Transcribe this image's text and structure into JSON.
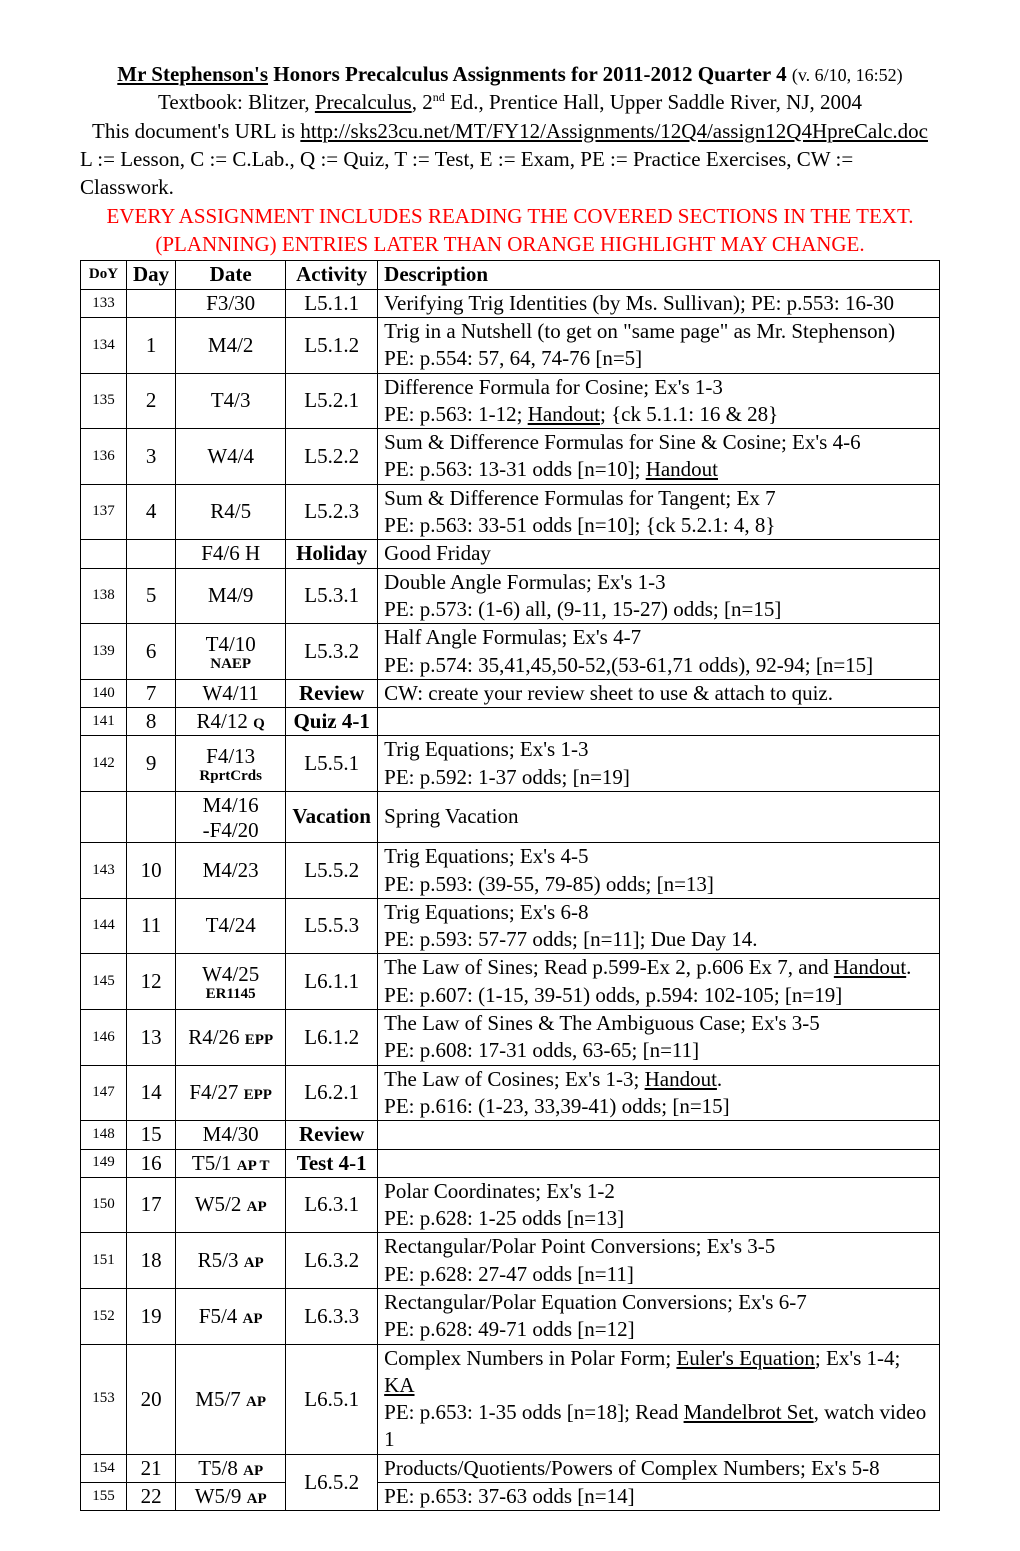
{
  "header": {
    "title_author": "Mr Stephenson's",
    "title_rest": " Honors Precalculus Assignments for 2011-2012 Quarter 4 ",
    "title_ver": "(v. 6/10, 16:52)",
    "textbook_pre": "Textbook: Blitzer, ",
    "textbook_title": "Precalculus",
    "textbook_post1": ", 2",
    "textbook_post2": " Ed., Prentice Hall, Upper Saddle River, NJ, 2004",
    "url_pre": "This document's URL is ",
    "url": "http://sks23cu.net/MT/FY12/Assignments/12Q4/assign12Q4HpreCalc.doc",
    "legend": "L := Lesson, C := C.Lab., Q := Quiz, T := Test, E := Exam, PE := Practice Exercises, CW := Classwork.",
    "red1": "EVERY ASSIGNMENT INCLUDES READING THE COVERED SECTIONS IN THE TEXT.",
    "red2": "(PLANNING) ENTRIES LATER THAN ORANGE HIGHLIGHT MAY CHANGE."
  },
  "columns": {
    "doy": "DoY",
    "day": "Day",
    "date": "Date",
    "activity": "Activity",
    "description": "Description"
  },
  "rows": [
    {
      "doy": "133",
      "day": "",
      "date": "F3/30",
      "act": "L5.1.1",
      "desc": "Verifying Trig Identities (by Ms. Sullivan); PE: p.553: 16-30"
    },
    {
      "doy": "134",
      "day": "1",
      "date": "M4/2",
      "act": "L5.1.2",
      "desc": "Trig in a Nutshell (to get on \"same page\" as Mr. Stephenson)<br>PE: p.554: 57, 64, 74-76 [n=5]"
    },
    {
      "doy": "135",
      "day": "2",
      "date": "T4/3",
      "act": "L5.2.1",
      "desc": "Difference Formula for Cosine; Ex's 1-3<br>PE: p.563: 1-12; <span class=\"ul\">Handout</span>; {ck 5.1.1: 16 & 28}"
    },
    {
      "doy": "136",
      "day": "3",
      "date": "W4/4",
      "act": "L5.2.2",
      "desc": "Sum & Difference Formulas for Sine & Cosine; Ex's 4-6<br>PE: p.563: 13-31 odds [n=10]; <span class=\"ul\">Handout</span>"
    },
    {
      "doy": "137",
      "day": "4",
      "date": "R4/5",
      "act": "L5.2.3",
      "desc": "Sum & Difference Formulas for Tangent; Ex 7<br>PE: p.563: 33-51 odds [n=10]; {ck 5.2.1: 4, 8}"
    },
    {
      "doy": "",
      "day": "",
      "date": "F4/6 H",
      "act": "<b>Holiday</b>",
      "desc": "Good Friday"
    },
    {
      "doy": "138",
      "day": "5",
      "date": "M4/9",
      "act": "L5.3.1",
      "desc": "Double Angle Formulas; Ex's 1-3<br>PE: p.573: (1-6) all, (9-11, 15-27) odds; [n=15]"
    },
    {
      "doy": "139",
      "day": "6",
      "date": "<span class=\"date-main\">T4/10</span><span class=\"date-sub\">NAEP</span>",
      "act": "L5.3.2",
      "desc": "Half Angle Formulas; Ex's 4-7<br>PE: p.574: 35,41,45,50-52,(53-61,71 odds), 92-94; [n=15]"
    },
    {
      "doy": "140",
      "day": "7",
      "date": "W4/11",
      "act": "<b>Review</b>",
      "desc": "CW: create your review sheet to use & attach to quiz."
    },
    {
      "doy": "141",
      "day": "8",
      "date": "R4/12 <span class=\"date-suffix\">Q</span>",
      "act": "<b>Quiz 4-1</b>",
      "desc": ""
    },
    {
      "doy": "142",
      "day": "9",
      "date": "<span class=\"date-main\">F4/13</span><span class=\"date-sub\">RprtCrds</span>",
      "act": "L5.5.1",
      "desc": "Trig Equations; Ex's 1-3<br>PE: p.592: 1-37 odds; [n=19]"
    },
    {
      "doy": "",
      "day": "",
      "date": "<span class=\"date-main\">M4/16</span><span class=\"date-main\">-F4/20</span>",
      "act": "<b>Vacation</b>",
      "desc": "Spring Vacation"
    },
    {
      "doy": "143",
      "day": "10",
      "date": "M4/23",
      "act": "L5.5.2",
      "desc": "Trig Equations; Ex's 4-5<br>PE: p.593: (39-55, 79-85) odds; [n=13]"
    },
    {
      "doy": "144",
      "day": "11",
      "date": "T4/24",
      "act": "L5.5.3",
      "desc": "Trig Equations; Ex's 6-8<br>PE: p.593: 57-77 odds; [n=11]; Due Day 14."
    },
    {
      "doy": "145",
      "day": "12",
      "date": "<span class=\"date-main\">W4/25</span><span class=\"date-sub\">ER1145</span>",
      "act": "L6.1.1",
      "desc": "The Law of Sines; Read p.599-Ex 2, p.606 Ex 7, and <span class=\"ul\">Handout</span>.<br>PE: p.607: (1-15, 39-51) odds, p.594: 102-105; [n=19]"
    },
    {
      "doy": "146",
      "day": "13",
      "date": "R4/26 <span class=\"date-suffix\">EPP</span>",
      "act": "L6.1.2",
      "desc": "The Law of Sines & The Ambiguous Case; Ex's 3-5<br>PE: p.608: 17-31 odds, 63-65; [n=11]"
    },
    {
      "doy": "147",
      "day": "14",
      "date": "F4/27 <span class=\"date-suffix\">EPP</span>",
      "act": "L6.2.1",
      "desc": "The Law of Cosines; Ex's 1-3; <span class=\"ul\">Handout</span>.<br>PE: p.616: (1-23, 33,39-41) odds; [n=15]"
    },
    {
      "doy": "148",
      "day": "15",
      "date": "M4/30",
      "act": "<b>Review</b>",
      "desc": ""
    },
    {
      "doy": "149",
      "day": "16",
      "date": "T5/1 <span class=\"date-suffix\">AP T</span>",
      "act": "<b>Test 4-1</b>",
      "desc": ""
    },
    {
      "doy": "150",
      "day": "17",
      "date": "W5/2 <span class=\"date-suffix\">AP</span>",
      "act": "L6.3.1",
      "desc": "Polar Coordinates; Ex's 1-2<br>PE: p.628: 1-25 odds [n=13]"
    },
    {
      "doy": "151",
      "day": "18",
      "date": "R5/3 <span class=\"date-suffix\">AP</span>",
      "act": "L6.3.2",
      "desc": "Rectangular/Polar Point Conversions; Ex's 3-5<br>PE: p.628: 27-47 odds [n=11]"
    },
    {
      "doy": "152",
      "day": "19",
      "date": "F5/4 <span class=\"date-suffix\">AP</span>",
      "act": "L6.3.3",
      "desc": "Rectangular/Polar Equation Conversions; Ex's 6-7<br>PE: p.628: 49-71 odds [n=12]"
    },
    {
      "doy": "153",
      "day": "20",
      "date": "M5/7 <span class=\"date-suffix\">AP</span>",
      "act": "L6.5.1",
      "desc": "Complex Numbers in Polar Form; <span class=\"ul\">Euler's Equation</span>; Ex's 1-4; <span class=\"ul\">KA</span><br>PE: p.653: 1-35 odds [n=18]; Read <span class=\"ul\">Mandelbrot Set</span>, watch video 1"
    },
    {
      "doy": "154",
      "day": "21",
      "date": "T5/8 <span class=\"date-suffix\">AP</span>",
      "act": "L6.5.2",
      "desc": "Products/Quotients/Powers of Complex Numbers; Ex's 5-8",
      "rowspan": 2,
      "desc2": "PE: p.653: 37-63 odds [n=14]"
    },
    {
      "doy": "155",
      "day": "22",
      "date": "W5/9 <span class=\"date-suffix\">AP</span>",
      "act": null,
      "desc": null
    }
  ]
}
